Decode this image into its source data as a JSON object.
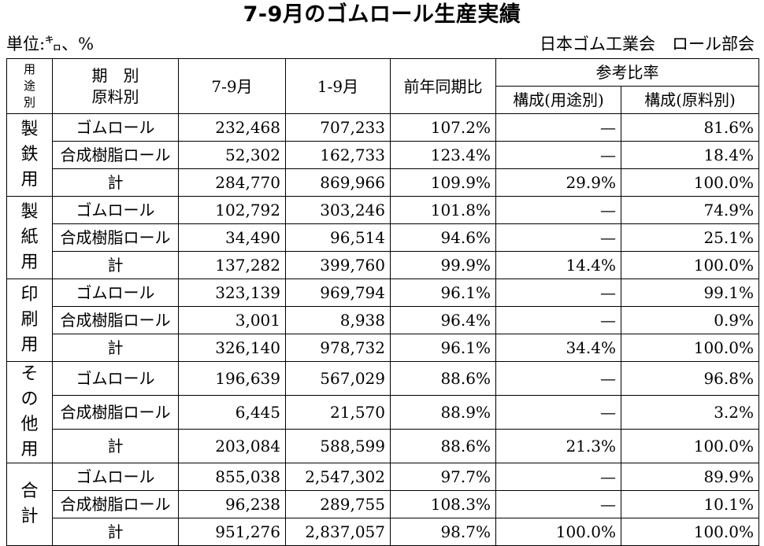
{
  "title": "7-9月のゴムロール生産実績",
  "unit": "単位:㌔、%",
  "organization": "日本ゴム工業会　ロール部会",
  "headers": {
    "usage": [
      "用",
      "途",
      "別"
    ],
    "period_line1": "期　別",
    "period_line2": "原料別",
    "col_q": "7-9月",
    "col_ytd": "1-9月",
    "col_yoy": "前年同期比",
    "ref_ratio": "参考比率",
    "comp_usage": "構成(用途別)",
    "comp_material": "構成(原料別)"
  },
  "groups": [
    {
      "usage": [
        "製",
        "鉄",
        "用"
      ],
      "rows": [
        {
          "material": "ゴムロール",
          "q": "232,468",
          "ytd": "707,233",
          "yoy": "107.2%",
          "comp_usage": "—",
          "comp_material": "81.6%"
        },
        {
          "material": "合成樹脂ロール",
          "q": "52,302",
          "ytd": "162,733",
          "yoy": "123.4%",
          "comp_usage": "—",
          "comp_material": "18.4%"
        },
        {
          "material": "計",
          "q": "284,770",
          "ytd": "869,966",
          "yoy": "109.9%",
          "comp_usage": "29.9%",
          "comp_material": "100.0%"
        }
      ]
    },
    {
      "usage": [
        "製",
        "紙",
        "用"
      ],
      "rows": [
        {
          "material": "ゴムロール",
          "q": "102,792",
          "ytd": "303,246",
          "yoy": "101.8%",
          "comp_usage": "—",
          "comp_material": "74.9%"
        },
        {
          "material": "合成樹脂ロール",
          "q": "34,490",
          "ytd": "96,514",
          "yoy": "94.6%",
          "comp_usage": "—",
          "comp_material": "25.1%"
        },
        {
          "material": "計",
          "q": "137,282",
          "ytd": "399,760",
          "yoy": "99.9%",
          "comp_usage": "14.4%",
          "comp_material": "100.0%"
        }
      ]
    },
    {
      "usage": [
        "印",
        "刷",
        "用"
      ],
      "rows": [
        {
          "material": "ゴムロール",
          "q": "323,139",
          "ytd": "969,794",
          "yoy": "96.1%",
          "comp_usage": "—",
          "comp_material": "99.1%"
        },
        {
          "material": "合成樹脂ロール",
          "q": "3,001",
          "ytd": "8,938",
          "yoy": "96.4%",
          "comp_usage": "—",
          "comp_material": "0.9%"
        },
        {
          "material": "計",
          "q": "326,140",
          "ytd": "978,732",
          "yoy": "96.1%",
          "comp_usage": "34.4%",
          "comp_material": "100.0%"
        }
      ]
    },
    {
      "usage": [
        "そ",
        "の",
        "他",
        "用"
      ],
      "rows": [
        {
          "material": "ゴムロール",
          "q": "196,639",
          "ytd": "567,029",
          "yoy": "88.6%",
          "comp_usage": "—",
          "comp_material": "96.8%"
        },
        {
          "material": "合成樹脂ロール",
          "q": "6,445",
          "ytd": "21,570",
          "yoy": "88.9%",
          "comp_usage": "—",
          "comp_material": "3.2%"
        },
        {
          "material": "計",
          "q": "203,084",
          "ytd": "588,599",
          "yoy": "88.6%",
          "comp_usage": "21.3%",
          "comp_material": "100.0%"
        }
      ]
    },
    {
      "usage": [
        "合",
        "計"
      ],
      "rows": [
        {
          "material": "ゴムロール",
          "q": "855,038",
          "ytd": "2,547,302",
          "yoy": "97.7%",
          "comp_usage": "—",
          "comp_material": "89.9%"
        },
        {
          "material": "合成樹脂ロール",
          "q": "96,238",
          "ytd": "289,755",
          "yoy": "108.3%",
          "comp_usage": "—",
          "comp_material": "10.1%"
        },
        {
          "material": "計",
          "q": "951,276",
          "ytd": "2,837,057",
          "yoy": "98.7%",
          "comp_usage": "100.0%",
          "comp_material": "100.0%"
        }
      ]
    }
  ]
}
